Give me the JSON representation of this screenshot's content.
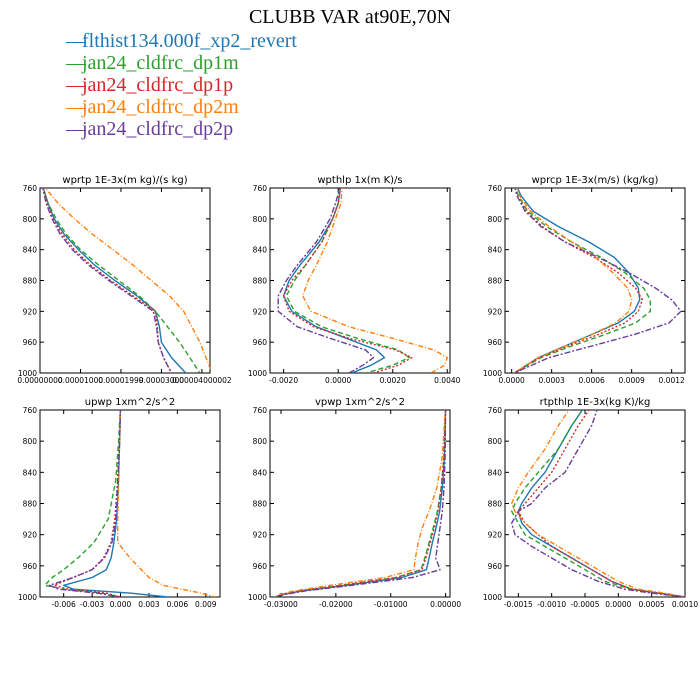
{
  "title": "CLUBB VAR at90E,70N",
  "legend": [
    {
      "label": "flthist134.000f_xp2_revert",
      "color": "#1f77b4"
    },
    {
      "label": "jan24_cldfrc_dp1m",
      "color": "#2ca02c"
    },
    {
      "label": "jan24_cldfrc_dp1p",
      "color": "#d62728"
    },
    {
      "label": "jan24_cldfrc_dp2m",
      "color": "#ff7f0e"
    },
    {
      "label": "jan24_cldfrc_dp2p",
      "color": "#6a3d9a"
    }
  ],
  "chart_data": [
    {
      "type": "line",
      "title": "wprtp   1E-3x(m kg)/(s kg)",
      "xlim": [
        0.0,
        4.2e-05
      ],
      "ylim": [
        760,
        1000
      ],
      "xticks": [
        0.0,
        1e-05,
        2e-05,
        3e-05,
        4e-05
      ],
      "xtick_labels": [
        "0.00000000",
        "0.00001000",
        "0.00001999",
        "0.00003000",
        "0.00004000002"
      ],
      "yticks": [
        760,
        800,
        840,
        880,
        920,
        960,
        1000
      ],
      "ytick_labels": [
        "760",
        "800",
        "840",
        "880",
        "920",
        "960",
        "1000"
      ],
      "y": [
        755,
        780,
        800,
        820,
        840,
        860,
        880,
        900,
        920,
        940,
        960,
        980,
        1000
      ],
      "series": [
        {
          "x": [
            5e-07,
            2e-06,
            3.5e-06,
            6e-06,
            9.5e-06,
            1.35e-05,
            1.85e-05,
            2.4e-05,
            2.85e-05,
            2.95e-05,
            3e-05,
            3.25e-05,
            3.6e-05
          ]
        },
        {
          "x": [
            5e-07,
            2e-06,
            4e-06,
            6.5e-06,
            1e-05,
            1.45e-05,
            1.95e-05,
            2.45e-05,
            2.85e-05,
            3.15e-05,
            3.45e-05,
            3.7e-05,
            3.95e-05
          ]
        },
        {
          "x": [
            5e-07,
            1.8e-06,
            3.2e-06,
            5.5e-06,
            8.5e-06,
            1.25e-05,
            1.75e-05,
            2.3e-05,
            2.85e-05,
            2.9e-05,
            2.92e-05,
            3.05e-05,
            3.25e-05
          ]
        },
        {
          "x": [
            5e-07,
            4.5e-06,
            8.5e-06,
            1.3e-05,
            1.8e-05,
            2.3e-05,
            2.75e-05,
            3.2e-05,
            3.55e-05,
            3.75e-05,
            3.95e-05,
            4.1e-05,
            4.25e-05
          ]
        },
        {
          "x": [
            5e-07,
            1.5e-06,
            3e-06,
            5e-06,
            8e-06,
            1.2e-05,
            1.7e-05,
            2.25e-05,
            2.8e-05,
            2.88e-05,
            2.92e-05,
            3.05e-05,
            3.25e-05
          ]
        }
      ]
    },
    {
      "type": "line",
      "title": "wpthlp   1x(m K)/s",
      "xlim": [
        -0.0025,
        0.0041
      ],
      "ylim": [
        760,
        1000
      ],
      "xticks": [
        -0.002,
        0.0,
        0.002,
        0.004
      ],
      "xtick_labels": [
        "-0.0020",
        "0.0000",
        "0.0020",
        "0.0040"
      ],
      "yticks": [
        760,
        800,
        840,
        880,
        920,
        960,
        1000
      ],
      "ytick_labels": [
        "760",
        "800",
        "840",
        "880",
        "920",
        "960",
        "1000"
      ],
      "y": [
        755,
        780,
        800,
        830,
        860,
        880,
        900,
        920,
        940,
        955,
        970,
        980,
        990,
        1000
      ],
      "series": [
        {
          "x": [
            0.0001,
            0.0,
            -0.0002,
            -0.0007,
            -0.0014,
            -0.0018,
            -0.002,
            -0.0017,
            -0.0008,
            0.0003,
            0.0014,
            0.0017,
            0.0012,
            0.0005
          ]
        },
        {
          "x": [
            0.0001,
            0.0,
            -0.0002,
            -0.0006,
            -0.0012,
            -0.0016,
            -0.0019,
            -0.0016,
            -0.0006,
            0.0007,
            0.0022,
            0.0026,
            0.002,
            0.001
          ]
        },
        {
          "x": [
            0.0001,
            0.0,
            -0.0002,
            -0.0006,
            -0.0012,
            -0.0017,
            -0.002,
            -0.0018,
            -0.0009,
            0.0004,
            0.0021,
            0.0027,
            0.0022,
            0.0013
          ]
        },
        {
          "x": [
            0.00015,
            0.0001,
            -0.0001,
            -0.0004,
            -0.0008,
            -0.0011,
            -0.0013,
            -0.001,
            0.0004,
            0.002,
            0.0035,
            0.004,
            0.0039,
            0.0034
          ]
        },
        {
          "x": [
            0.0001,
            -0.0001,
            -0.0003,
            -0.0008,
            -0.0015,
            -0.0019,
            -0.0022,
            -0.0022,
            -0.0015,
            -0.0003,
            0.001,
            0.0013,
            0.0009,
            0.0004
          ]
        }
      ]
    },
    {
      "type": "line",
      "title": "wprcp   1E-3x(m/s) (kg/kg)",
      "xlim": [
        -5e-05,
        0.0013
      ],
      "ylim": [
        760,
        1000
      ],
      "xticks": [
        0.0,
        0.0003,
        0.0006,
        0.0009,
        0.0012
      ],
      "xtick_labels": [
        "0.0000",
        "0.0003",
        "0.0006",
        "0.0009",
        "0.0012"
      ],
      "yticks": [
        760,
        800,
        840,
        880,
        920,
        960,
        1000
      ],
      "ytick_labels": [
        "760",
        "800",
        "840",
        "880",
        "920",
        "960",
        "1000"
      ],
      "y": [
        755,
        770,
        790,
        810,
        830,
        850,
        870,
        890,
        905,
        920,
        935,
        950,
        965,
        980,
        1000
      ],
      "series": [
        {
          "x": [
            3e-05,
            7e-05,
            0.00016,
            0.00035,
            0.00058,
            0.00077,
            0.00088,
            0.00095,
            0.00096,
            0.00092,
            0.0008,
            0.0006,
            0.0004,
            0.0002,
            2e-05
          ]
        },
        {
          "x": [
            2e-05,
            5e-05,
            0.00012,
            0.00026,
            0.00045,
            0.00067,
            0.00085,
            0.00099,
            0.00104,
            0.00104,
            0.00093,
            0.0007,
            0.00045,
            0.00022,
            2e-05
          ]
        },
        {
          "x": [
            2e-05,
            4e-05,
            0.00011,
            0.00023,
            0.0004,
            0.00062,
            0.0008,
            0.00093,
            0.00098,
            0.00095,
            0.00085,
            0.00065,
            0.00042,
            0.00021,
            2e-05
          ]
        },
        {
          "x": [
            3e-05,
            6e-05,
            0.00014,
            0.00028,
            0.00045,
            0.00063,
            0.00076,
            0.00087,
            0.0009,
            0.00088,
            0.00078,
            0.0006,
            0.0004,
            0.0002,
            2e-05
          ]
        },
        {
          "x": [
            2e-05,
            4e-05,
            0.0001,
            0.00022,
            0.0004,
            0.00065,
            0.00088,
            0.00108,
            0.0012,
            0.00127,
            0.00118,
            0.00092,
            0.0006,
            0.00028,
            2e-05
          ]
        }
      ]
    },
    {
      "type": "line",
      "title": "upwp   1xm^2/s^2",
      "xlim": [
        -0.0085,
        0.0105
      ],
      "ylim": [
        760,
        1000
      ],
      "xticks": [
        -0.006,
        -0.003,
        0.0,
        0.003,
        0.006,
        0.009
      ],
      "xtick_labels": [
        "-0.006",
        "-0.003",
        "0.000",
        "0.003",
        "0.006",
        "0.009"
      ],
      "yticks": [
        760,
        800,
        840,
        880,
        920,
        960,
        1000
      ],
      "ytick_labels": [
        "760",
        "800",
        "840",
        "880",
        "920",
        "960",
        "1000"
      ],
      "y": [
        755,
        800,
        850,
        900,
        930,
        950,
        965,
        975,
        985,
        990,
        995,
        1000
      ],
      "series": [
        {
          "x": [
            0.0,
            -0.0001,
            -0.0002,
            -0.0004,
            -0.0007,
            -0.001,
            -0.0015,
            -0.003,
            -0.006,
            -0.005,
            0.001,
            0.005
          ]
        },
        {
          "x": [
            0.0,
            -0.0002,
            -0.0005,
            -0.0013,
            -0.0028,
            -0.0045,
            -0.006,
            -0.0072,
            -0.008,
            -0.006,
            -0.002,
            0.0
          ]
        },
        {
          "x": [
            0.0,
            -0.0001,
            -0.0003,
            -0.0006,
            -0.001,
            -0.0018,
            -0.003,
            -0.005,
            -0.007,
            -0.0055,
            -0.0015,
            0.0
          ]
        },
        {
          "x": [
            0.0,
            -0.0001,
            -0.0002,
            -0.0003,
            -0.0003,
            0.001,
            0.0022,
            0.003,
            0.0045,
            0.0065,
            0.0085,
            0.01
          ]
        },
        {
          "x": [
            0.0,
            -0.0001,
            -0.0003,
            -0.0005,
            -0.0009,
            -0.0017,
            -0.003,
            -0.005,
            -0.0075,
            -0.0065,
            -0.0025,
            0.0
          ]
        }
      ]
    },
    {
      "type": "line",
      "title": "vpwp   1xm^2/s^2",
      "xlim": [
        -0.032,
        0.0008
      ],
      "ylim": [
        760,
        1000
      ],
      "xticks": [
        -0.03,
        -0.02,
        -0.01,
        0.0
      ],
      "xtick_labels": [
        "-0.03000",
        "-0.02000",
        "-0.01000",
        "0.00000"
      ],
      "yticks": [
        760,
        800,
        840,
        880,
        920,
        960,
        1000
      ],
      "ytick_labels": [
        "760",
        "800",
        "840",
        "880",
        "920",
        "960",
        "1000"
      ],
      "y": [
        755,
        820,
        860,
        890,
        910,
        930,
        950,
        965,
        975,
        985,
        992,
        997,
        1000
      ],
      "series": [
        {
          "x": [
            0.0,
            -0.0002,
            -0.0006,
            -0.0011,
            -0.0017,
            -0.0024,
            -0.003,
            -0.0035,
            -0.008,
            -0.018,
            -0.026,
            -0.03,
            -0.031
          ]
        },
        {
          "x": [
            0.0,
            -0.0003,
            -0.0008,
            -0.0015,
            -0.0022,
            -0.003,
            -0.0038,
            -0.0045,
            -0.009,
            -0.019,
            -0.0265,
            -0.03,
            -0.031
          ]
        },
        {
          "x": [
            0.0,
            -0.0003,
            -0.0008,
            -0.0014,
            -0.002,
            -0.0028,
            -0.0036,
            -0.0043,
            -0.009,
            -0.019,
            -0.0265,
            -0.03,
            -0.031
          ]
        },
        {
          "x": [
            0.0,
            -0.0006,
            -0.0016,
            -0.003,
            -0.0042,
            -0.005,
            -0.0055,
            -0.0058,
            -0.011,
            -0.021,
            -0.0275,
            -0.0305,
            -0.031
          ]
        },
        {
          "x": [
            0.0,
            -0.0001,
            -0.0003,
            -0.0006,
            -0.001,
            -0.0014,
            -0.0018,
            -0.001,
            -0.006,
            -0.017,
            -0.0255,
            -0.0295,
            -0.031
          ]
        }
      ]
    },
    {
      "type": "line",
      "title": "rtpthlp   1E-3x(kg K)/kg",
      "xlim": [
        -0.0017,
        0.001
      ],
      "ylim": [
        760,
        1000
      ],
      "xticks": [
        -0.0015,
        -0.001,
        -0.0005,
        0.0,
        0.0005,
        0.001
      ],
      "xtick_labels": [
        "-0.0015",
        "-0.0010",
        "-0.0005",
        "0.0000",
        "0.0005",
        "0.0010"
      ],
      "yticks": [
        760,
        800,
        840,
        880,
        920,
        960,
        1000
      ],
      "ytick_labels": [
        "760",
        "800",
        "840",
        "880",
        "920",
        "960",
        "1000"
      ],
      "y": [
        755,
        780,
        810,
        840,
        860,
        880,
        890,
        905,
        920,
        935,
        950,
        965,
        980,
        990,
        995,
        1000
      ],
      "series": [
        {
          "x": [
            -0.0005,
            -0.0007,
            -0.0009,
            -0.0011,
            -0.0013,
            -0.00145,
            -0.0015,
            -0.00145,
            -0.0013,
            -0.001,
            -0.0007,
            -0.0004,
            -0.0001,
            0.0002,
            0.0006,
            0.001
          ]
        },
        {
          "x": [
            -0.0005,
            -0.0007,
            -0.0009,
            -0.0012,
            -0.0014,
            -0.00155,
            -0.0016,
            -0.0015,
            -0.0014,
            -0.0011,
            -0.0008,
            -0.0005,
            -0.0002,
            0.0002,
            0.0006,
            0.001
          ]
        },
        {
          "x": [
            -0.0004,
            -0.0006,
            -0.0008,
            -0.001,
            -0.0012,
            -0.0014,
            -0.0015,
            -0.0014,
            -0.0012,
            -0.001,
            -0.0007,
            -0.0004,
            -0.0001,
            0.0002,
            0.0006,
            0.001
          ]
        },
        {
          "x": [
            -0.0007,
            -0.0009,
            -0.0011,
            -0.00135,
            -0.0015,
            -0.0016,
            -0.00155,
            -0.0014,
            -0.0012,
            -0.0009,
            -0.0006,
            -0.0003,
            0.0,
            0.0003,
            0.0007,
            0.001
          ]
        },
        {
          "x": [
            -0.0003,
            -0.0004,
            -0.0006,
            -0.0008,
            -0.0011,
            -0.0013,
            -0.0015,
            -0.0016,
            -0.00155,
            -0.0013,
            -0.001,
            -0.0007,
            -0.0003,
            0.0001,
            0.0005,
            0.001
          ]
        }
      ]
    }
  ]
}
